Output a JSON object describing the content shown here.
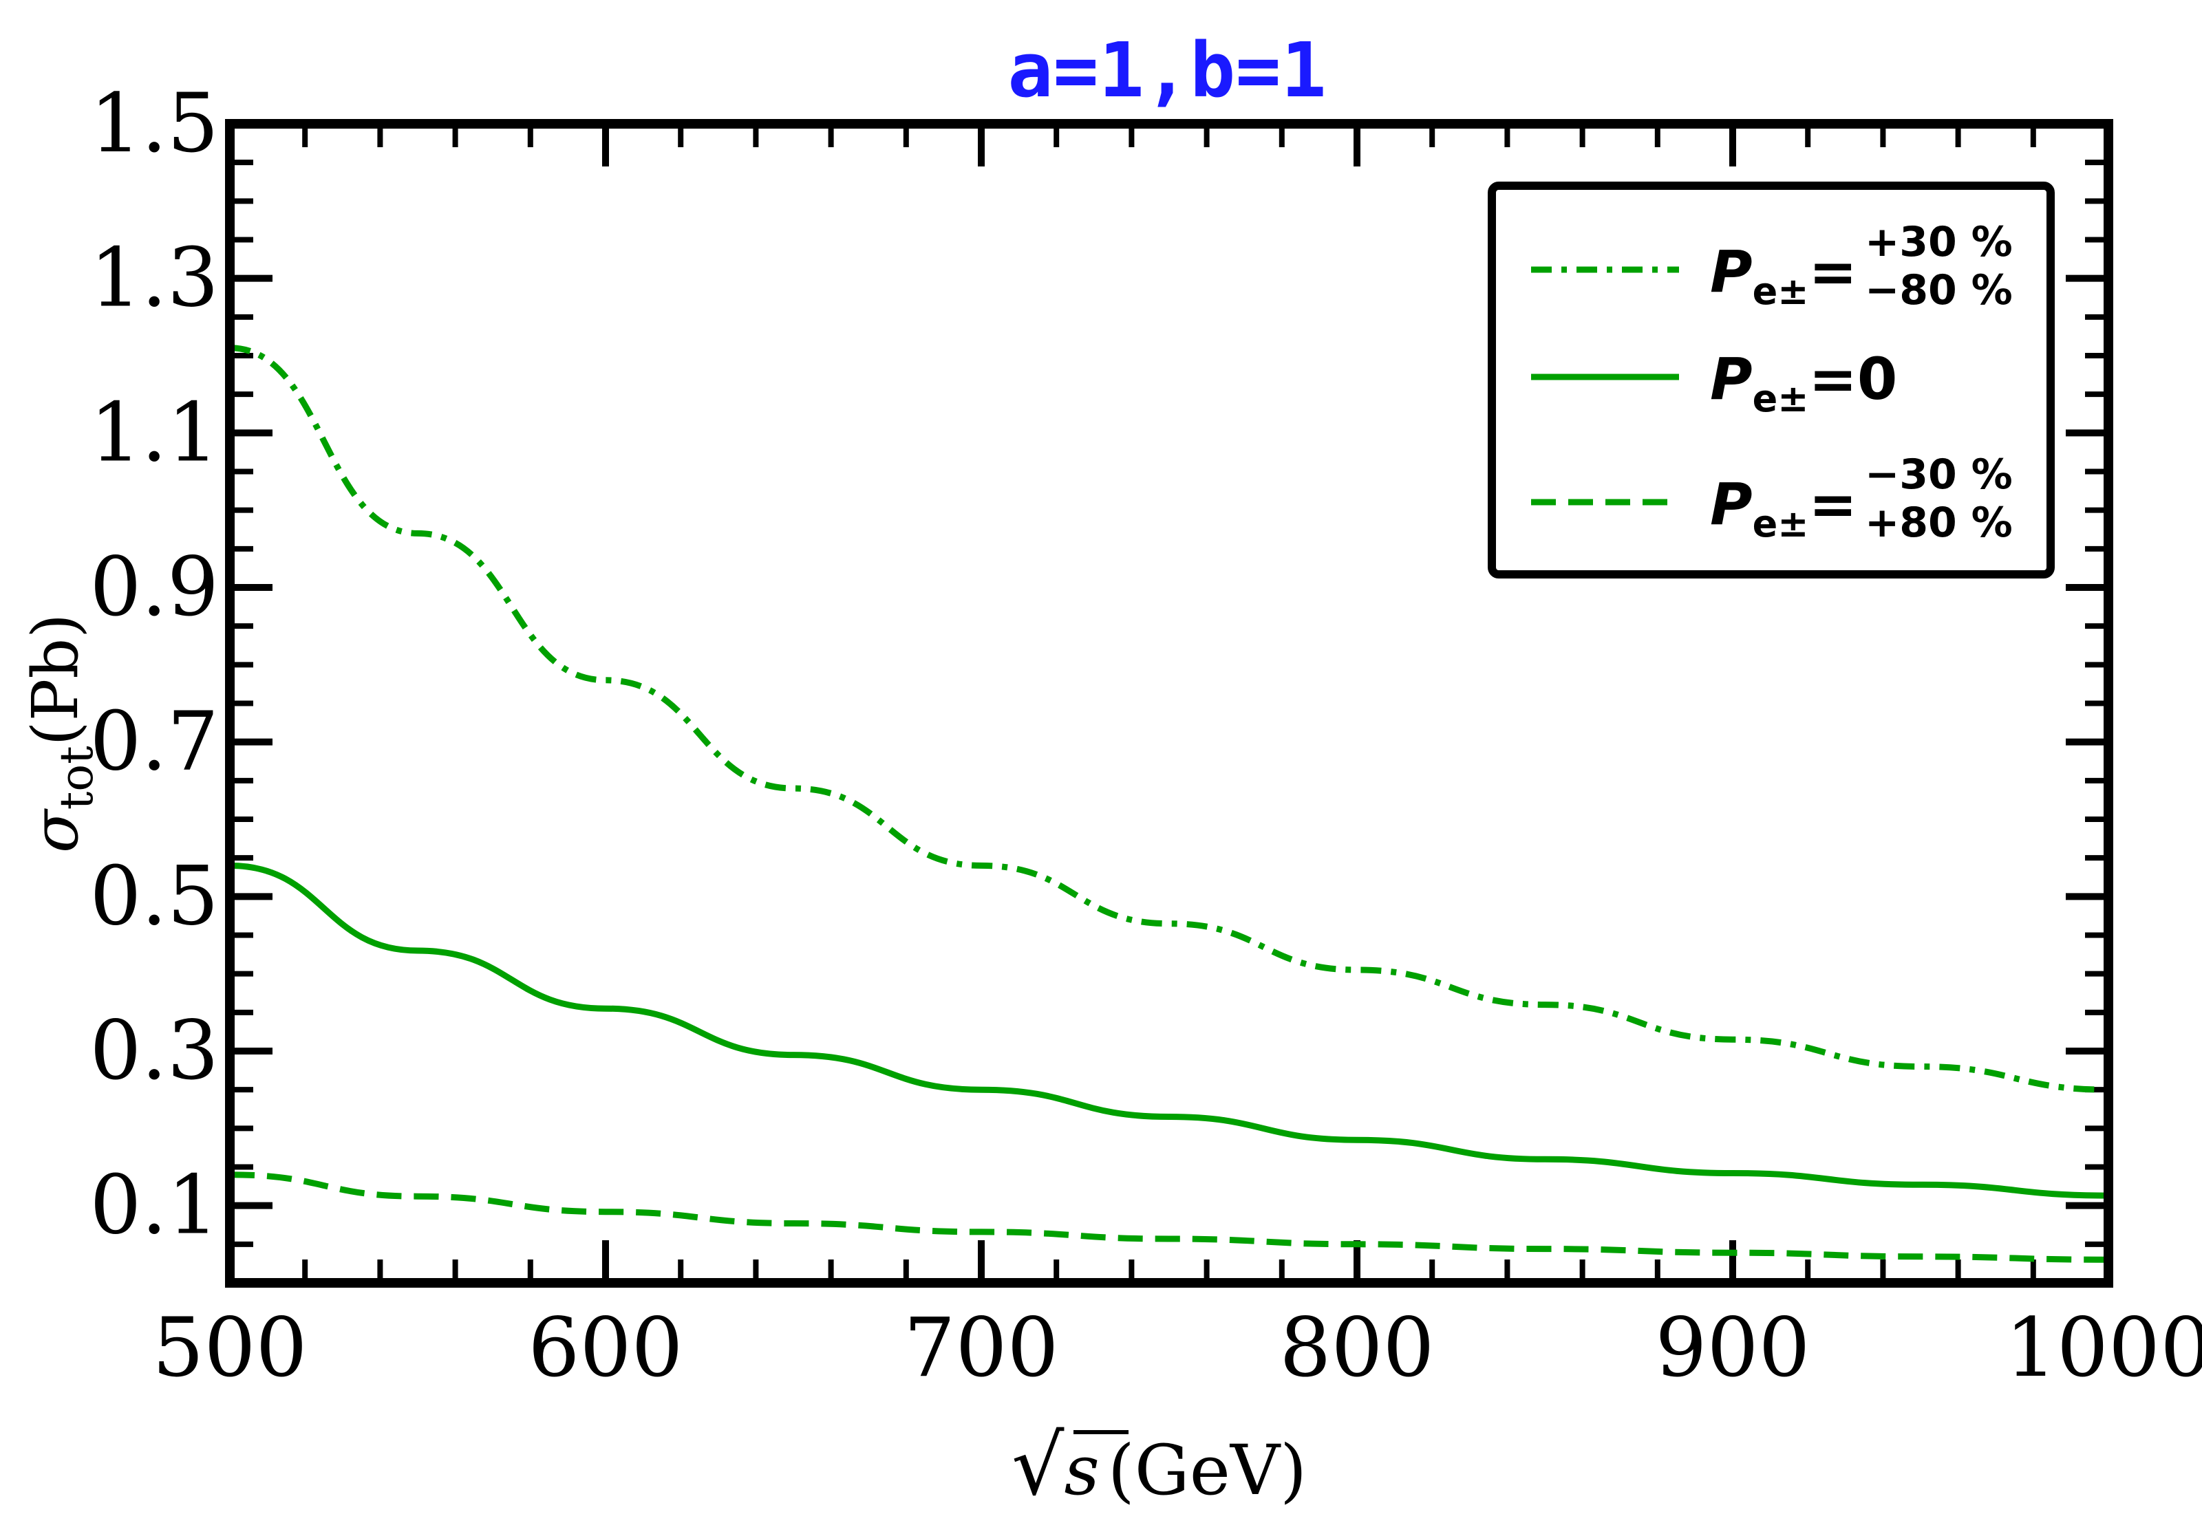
{
  "chart_data": {
    "type": "line",
    "title": "a=1,b=1",
    "title_color": "#1a1aff",
    "ylabel": "σ",
    "ylabel_sub": "tot",
    "ylabel_unit": "(Pb)",
    "xlabel": "s",
    "xlabel_prefix": "√",
    "xlabel_unit": "(GeV)",
    "xlim": [
      500,
      1000
    ],
    "ylim": [
      0.0,
      1.5
    ],
    "x_ticks": [
      500,
      600,
      700,
      800,
      900,
      1000
    ],
    "x_tick_labels": [
      "500",
      "600",
      "700",
      "800",
      "900",
      "1000"
    ],
    "y_ticks": [
      0.1,
      0.3,
      0.5,
      0.7,
      0.9,
      1.1,
      1.3,
      1.5
    ],
    "y_tick_labels": [
      "0.1",
      "0.3",
      "0.5",
      "0.7",
      "0.9",
      "1.1",
      "1.3",
      "1.5"
    ],
    "grid": false,
    "legend_position": "top-right",
    "line_color": "#00a000",
    "x": [
      500,
      550,
      600,
      650,
      700,
      750,
      800,
      850,
      900,
      950,
      1000
    ],
    "series": [
      {
        "style": "dashdot",
        "legend": {
          "symbol": "P",
          "subscript": "e±",
          "equals": "=",
          "sup": "+30 %",
          "sub": "−80 %",
          "value": ""
        },
        "values": [
          1.21,
          0.97,
          0.78,
          0.64,
          0.54,
          0.465,
          0.405,
          0.36,
          0.315,
          0.28,
          0.25
        ]
      },
      {
        "style": "solid",
        "legend": {
          "symbol": "P",
          "subscript": "e±",
          "equals": "=",
          "sup": "",
          "sub": "",
          "value": "0"
        },
        "values": [
          0.54,
          0.43,
          0.355,
          0.295,
          0.25,
          0.215,
          0.185,
          0.16,
          0.142,
          0.127,
          0.113
        ]
      },
      {
        "style": "dashed",
        "legend": {
          "symbol": "P",
          "subscript": "e±",
          "equals": "=",
          "sup": "−30 %",
          "sub": "+80 %",
          "value": ""
        },
        "values": [
          0.14,
          0.112,
          0.092,
          0.077,
          0.066,
          0.057,
          0.05,
          0.044,
          0.039,
          0.034,
          0.03
        ]
      }
    ]
  }
}
